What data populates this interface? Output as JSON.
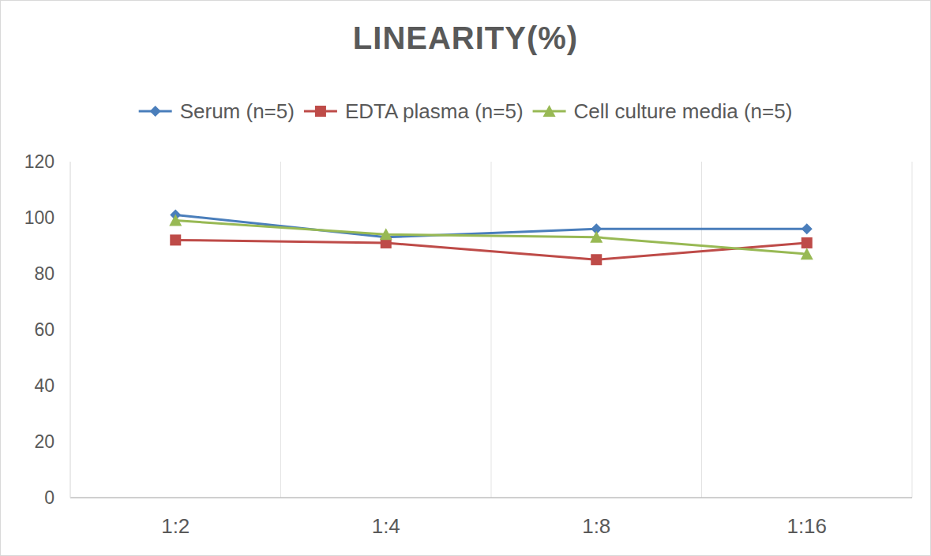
{
  "chart_data": {
    "type": "line",
    "title": "LINEARITY(%)",
    "categories": [
      "1:2",
      "1:4",
      "1:8",
      "1:16"
    ],
    "series": [
      {
        "name": "Serum (n=5)",
        "color": "#4a7ebb",
        "marker": "diamond",
        "values": [
          101,
          93,
          96,
          96
        ]
      },
      {
        "name": "EDTA plasma (n=5)",
        "color": "#be4b48",
        "marker": "square",
        "values": [
          92,
          91,
          85,
          91
        ]
      },
      {
        "name": "Cell culture media (n=5)",
        "color": "#98b954",
        "marker": "triangle",
        "values": [
          99,
          94,
          93,
          87
        ]
      }
    ],
    "ylim": [
      0,
      120
    ],
    "yticks": [
      0,
      20,
      40,
      60,
      80,
      100,
      120
    ],
    "grid": true,
    "legend": "top"
  }
}
